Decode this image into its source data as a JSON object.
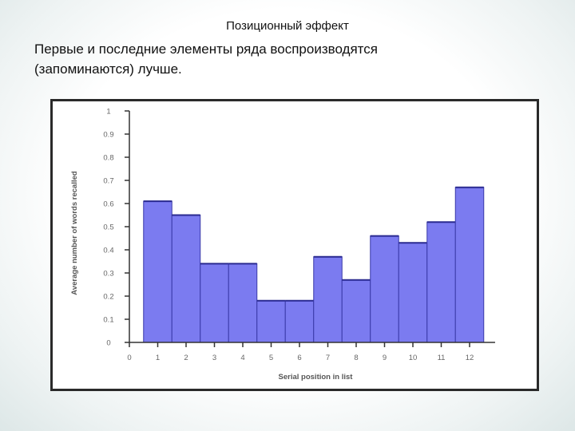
{
  "slide": {
    "heading": "Позиционный эффект",
    "body_line1": "Первые и последние элементы ряда воспроизводятся",
    "body_line2": "(запоминаются) лучше."
  },
  "chart_data": {
    "type": "bar",
    "categories": [
      1,
      2,
      3,
      4,
      5,
      6,
      7,
      8,
      9,
      10,
      11,
      12
    ],
    "values": [
      0.61,
      0.55,
      0.34,
      0.34,
      0.18,
      0.18,
      0.37,
      0.27,
      0.46,
      0.43,
      0.52,
      0.67
    ],
    "xlabel": "Serial position in list",
    "ylabel": "Average number of words recalled",
    "ylim": [
      0,
      1
    ],
    "yticks": [
      "0",
      "0.1",
      "0.2",
      "0.3",
      "0.4",
      "0.5",
      "0.6",
      "0.7",
      "0.8",
      "0.9",
      "1"
    ],
    "xticks": [
      "0",
      "1",
      "2",
      "3",
      "4",
      "5",
      "6",
      "7",
      "8",
      "9",
      "10",
      "11",
      "12"
    ],
    "grid": false,
    "bar_color": "#7b7bf0",
    "bar_edge_color": "#3a3aa8"
  }
}
